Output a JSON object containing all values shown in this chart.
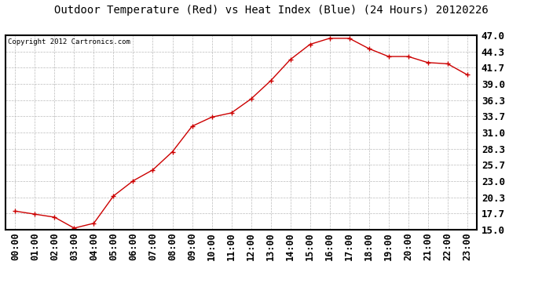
{
  "title": "Outdoor Temperature (Red) vs Heat Index (Blue) (24 Hours) 20120226",
  "copyright": "Copyright 2012 Cartronics.com",
  "x_labels": [
    "00:00",
    "01:00",
    "02:00",
    "03:00",
    "04:00",
    "05:00",
    "06:00",
    "07:00",
    "08:00",
    "09:00",
    "10:00",
    "11:00",
    "12:00",
    "13:00",
    "14:00",
    "15:00",
    "16:00",
    "17:00",
    "18:00",
    "19:00",
    "20:00",
    "21:00",
    "22:00",
    "23:00"
  ],
  "temp_values": [
    18.0,
    17.5,
    17.0,
    15.2,
    16.0,
    20.5,
    23.0,
    24.8,
    27.8,
    32.0,
    33.5,
    34.2,
    36.5,
    39.5,
    43.0,
    45.5,
    46.5,
    46.5,
    44.8,
    43.5,
    43.5,
    42.5,
    42.3,
    40.5
  ],
  "y_ticks": [
    15.0,
    17.7,
    20.3,
    23.0,
    25.7,
    28.3,
    31.0,
    33.7,
    36.3,
    39.0,
    41.7,
    44.3,
    47.0
  ],
  "y_min": 15.0,
  "y_max": 47.0,
  "line_color_temp": "#cc0000",
  "marker_style": "+",
  "bg_color": "#ffffff",
  "plot_bg_color": "#ffffff",
  "grid_color": "#bbbbbb",
  "title_fontsize": 10,
  "copyright_fontsize": 6.5,
  "tick_fontsize": 8.5,
  "ytick_fontsize": 9
}
